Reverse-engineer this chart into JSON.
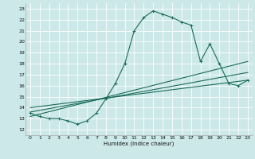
{
  "xlabel": "Humidex (Indice chaleur)",
  "bg_color": "#cce8e8",
  "grid_color": "#ffffff",
  "line_color": "#1a6b5a",
  "xlim": [
    -0.5,
    23.5
  ],
  "ylim": [
    11.5,
    23.5
  ],
  "yticks": [
    12,
    13,
    14,
    15,
    16,
    17,
    18,
    19,
    20,
    21,
    22,
    23
  ],
  "xticks": [
    0,
    1,
    2,
    3,
    4,
    5,
    6,
    7,
    8,
    9,
    10,
    11,
    12,
    13,
    14,
    15,
    16,
    17,
    18,
    19,
    20,
    21,
    22,
    23
  ],
  "main_curve_x": [
    0,
    1,
    2,
    3,
    4,
    5,
    6,
    7,
    8,
    9,
    10,
    11,
    12,
    13,
    14,
    15,
    16,
    17,
    18,
    19,
    20,
    21,
    22,
    23
  ],
  "main_curve_y": [
    13.5,
    13.2,
    13.0,
    13.0,
    12.8,
    12.5,
    12.8,
    13.5,
    14.8,
    16.2,
    18.0,
    21.0,
    22.2,
    22.8,
    22.5,
    22.2,
    21.8,
    21.5,
    18.2,
    19.8,
    18.0,
    16.2,
    16.0,
    16.5
  ],
  "trend_lines": [
    {
      "x": [
        0,
        23
      ],
      "y": [
        13.2,
        18.2
      ]
    },
    {
      "x": [
        0,
        23
      ],
      "y": [
        13.6,
        17.2
      ]
    },
    {
      "x": [
        0,
        23
      ],
      "y": [
        14.0,
        16.5
      ]
    }
  ]
}
